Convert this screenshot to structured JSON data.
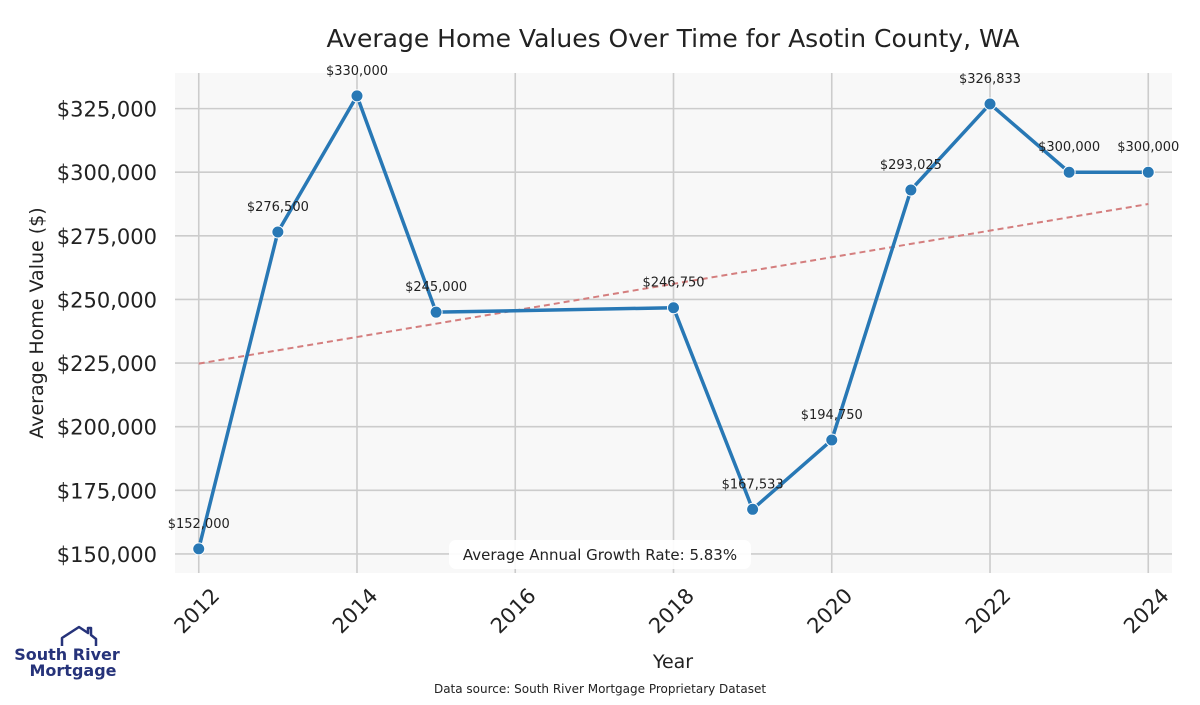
{
  "chart_data": {
    "type": "line",
    "title": "Average Home Values Over Time for Asotin County, WA",
    "xlabel": "Year",
    "ylabel": "Average Home Value ($)",
    "xlim": [
      2011.7,
      2024.3
    ],
    "ylim": [
      142500,
      339000
    ],
    "x_ticks": [
      2012,
      2014,
      2016,
      2018,
      2020,
      2022,
      2024
    ],
    "x_tick_labels": [
      "2012",
      "2014",
      "2016",
      "2018",
      "2020",
      "2022",
      "2024"
    ],
    "y_ticks": [
      150000,
      175000,
      200000,
      225000,
      250000,
      275000,
      300000,
      325000
    ],
    "y_tick_labels": [
      "$150,000",
      "$175,000",
      "$200,000",
      "$225,000",
      "$250,000",
      "$275,000",
      "$300,000",
      "$325,000"
    ],
    "grid": true,
    "series": [
      {
        "color": "#2878b5",
        "points": [
          {
            "x": 2012,
            "y": 152000,
            "label": "$152,000"
          },
          {
            "x": 2013,
            "y": 276500,
            "label": "$276,500"
          },
          {
            "x": 2014,
            "y": 330000,
            "label": "$330,000"
          },
          {
            "x": 2015,
            "y": 245000,
            "label": "$245,000"
          },
          {
            "x": 2018,
            "y": 246750,
            "label": "$246,750"
          },
          {
            "x": 2019,
            "y": 167533,
            "label": "$167,533"
          },
          {
            "x": 2020,
            "y": 194750,
            "label": "$194,750"
          },
          {
            "x": 2021,
            "y": 293025,
            "label": "$293,025"
          },
          {
            "x": 2022,
            "y": 326833,
            "label": "$326,833"
          },
          {
            "x": 2023,
            "y": 300000,
            "label": "$300,000"
          },
          {
            "x": 2024,
            "y": 300000,
            "label": "$300,000"
          }
        ]
      }
    ],
    "trendline": {
      "style": "dashed",
      "color": "#d47e7e",
      "x": [
        2012,
        2024
      ],
      "y": [
        224800,
        287500
      ]
    },
    "annotation": "Average Annual Growth Rate: 5.83%",
    "source": "Data source: South River Mortgage Proprietary Dataset"
  },
  "logo": {
    "line1": "South River",
    "line2": "Mortgage",
    "color": "#26337a"
  }
}
